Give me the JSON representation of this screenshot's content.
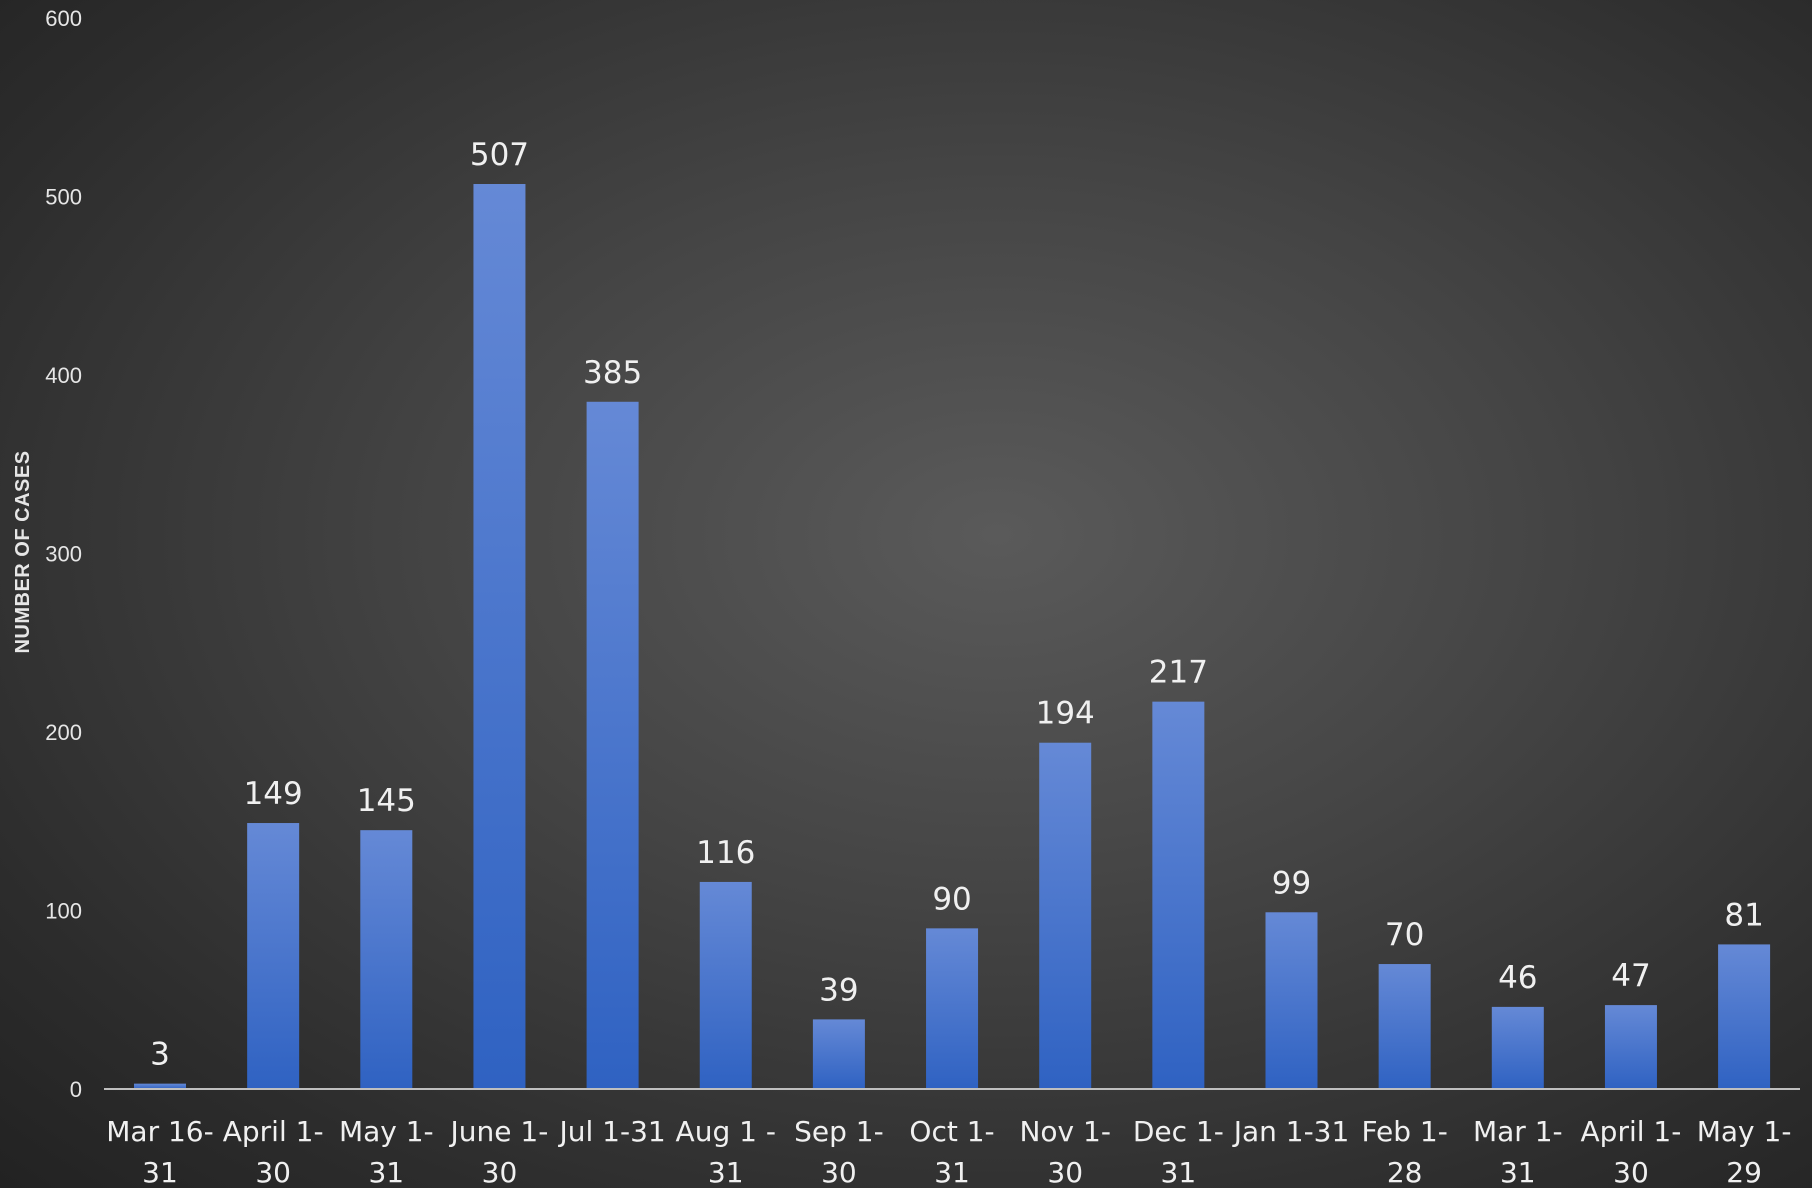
{
  "chart_data": {
    "type": "bar",
    "title": "",
    "xlabel": "",
    "ylabel": "NUMBER OF CASES",
    "ylim": [
      0,
      600
    ],
    "yticks": [
      0,
      100,
      200,
      300,
      400,
      500,
      600
    ],
    "grid": false,
    "legend": "none",
    "categories": [
      [
        "Mar 16-",
        "31"
      ],
      [
        "April 1-",
        "30"
      ],
      [
        "May 1-",
        "31"
      ],
      [
        "June 1-",
        "30"
      ],
      [
        "Jul 1-31",
        ""
      ],
      [
        "Aug 1 -",
        "31"
      ],
      [
        "Sep 1-",
        "30"
      ],
      [
        "Oct 1-",
        "31"
      ],
      [
        "Nov 1-",
        "30"
      ],
      [
        "Dec 1-",
        "31"
      ],
      [
        "Jan 1-31",
        ""
      ],
      [
        "Feb 1-",
        "28"
      ],
      [
        "Mar 1-",
        "31"
      ],
      [
        "April 1-",
        "30"
      ],
      [
        "May 1-",
        "29"
      ]
    ],
    "values": [
      3,
      149,
      145,
      507,
      385,
      116,
      39,
      90,
      194,
      217,
      99,
      70,
      46,
      47,
      81
    ],
    "colors": {
      "bar_top": "#6589d6",
      "bar_bottom": "#2f62c2",
      "axis": "#bfbfbf",
      "text": "#f0f0f0"
    }
  }
}
